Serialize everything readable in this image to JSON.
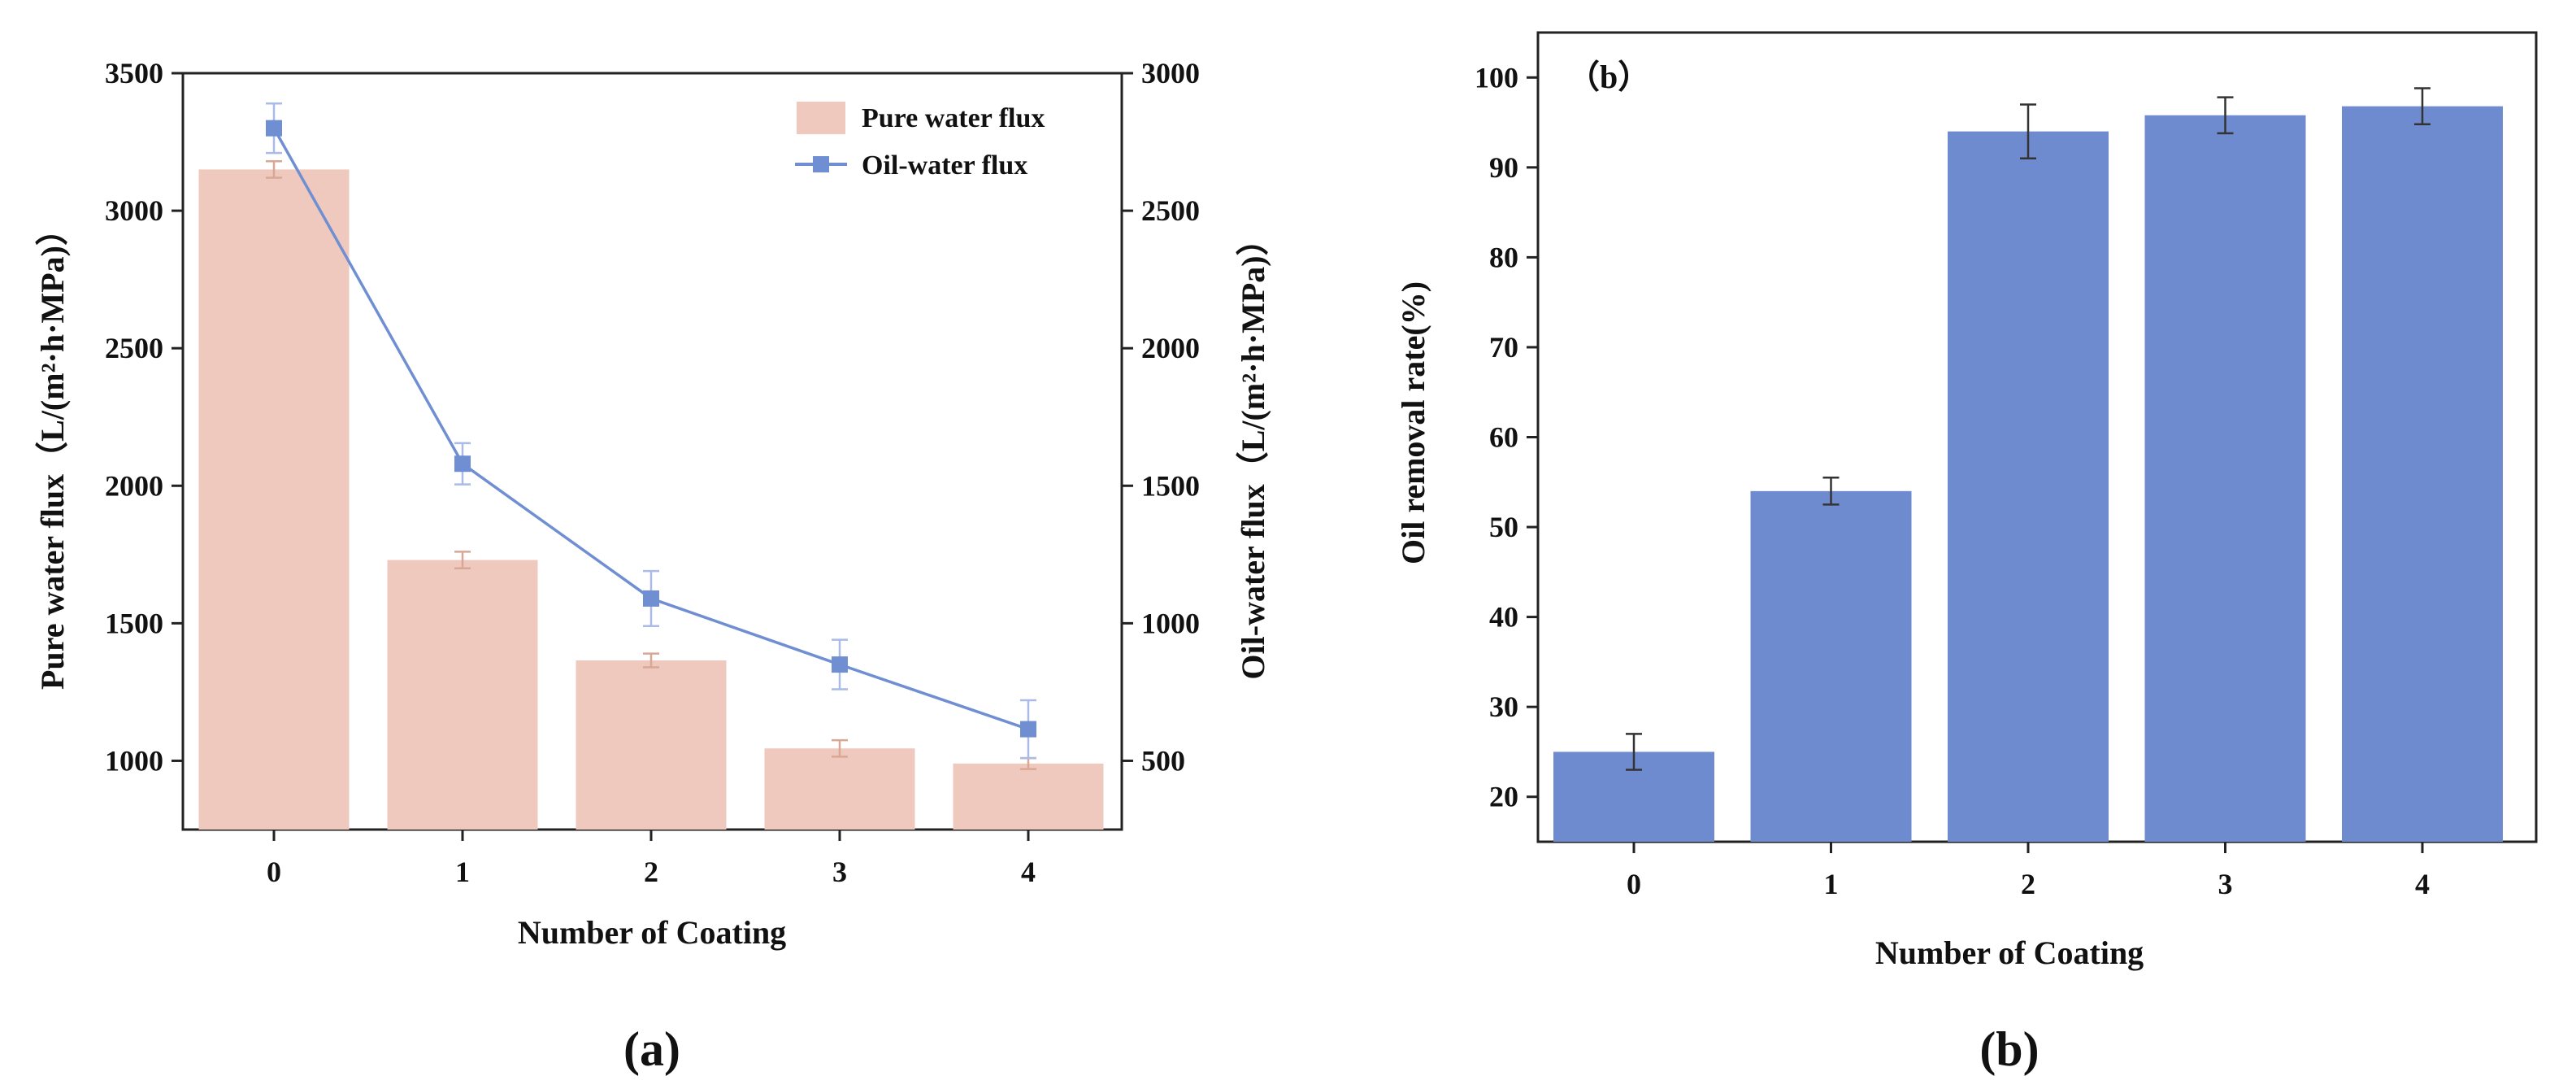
{
  "chart_data": [
    {
      "type": "bar+line",
      "panel_label": "(a)",
      "xlabel": "Number of Coating",
      "ylabel_left": "Pure water flux（L/(m²·h·MPa)）",
      "ylabel_right": "Oil-water flux（L/(m²·h·MPa)）",
      "categories": [
        "0",
        "1",
        "2",
        "3",
        "4"
      ],
      "ylim_left": [
        750,
        3500
      ],
      "yticks_left": [
        1000,
        1500,
        2000,
        2500,
        3000,
        3500
      ],
      "ylim_right": [
        250,
        3000
      ],
      "yticks_right": [
        500,
        1000,
        1500,
        2000,
        2500,
        3000
      ],
      "legend_position": "top-right",
      "series": [
        {
          "name": "Pure water flux",
          "kind": "bar",
          "axis": "left",
          "color": "#efc9bd",
          "values": [
            3150,
            1730,
            1365,
            1045,
            990
          ],
          "errors": [
            30,
            30,
            25,
            30,
            20
          ]
        },
        {
          "name": "Oil-water flux",
          "kind": "line",
          "axis": "right",
          "color": "#6f8fd2",
          "values": [
            2800,
            1580,
            1090,
            850,
            615
          ],
          "errors": [
            90,
            75,
            100,
            90,
            105
          ]
        }
      ]
    },
    {
      "type": "bar",
      "panel_label": "(b)",
      "panel_tag": "（b）",
      "xlabel": "Number of Coating",
      "ylabel": "Oil removal rate(%)",
      "categories": [
        "0",
        "1",
        "2",
        "3",
        "4"
      ],
      "ylim": [
        15,
        105
      ],
      "yticks": [
        20,
        30,
        40,
        50,
        60,
        70,
        80,
        90,
        100
      ],
      "series": [
        {
          "kind": "bar",
          "color": "#6f8bcf",
          "values": [
            25,
            54,
            94,
            95.8,
            96.8
          ],
          "errors": [
            2,
            1.5,
            3,
            2,
            2
          ]
        }
      ]
    }
  ]
}
